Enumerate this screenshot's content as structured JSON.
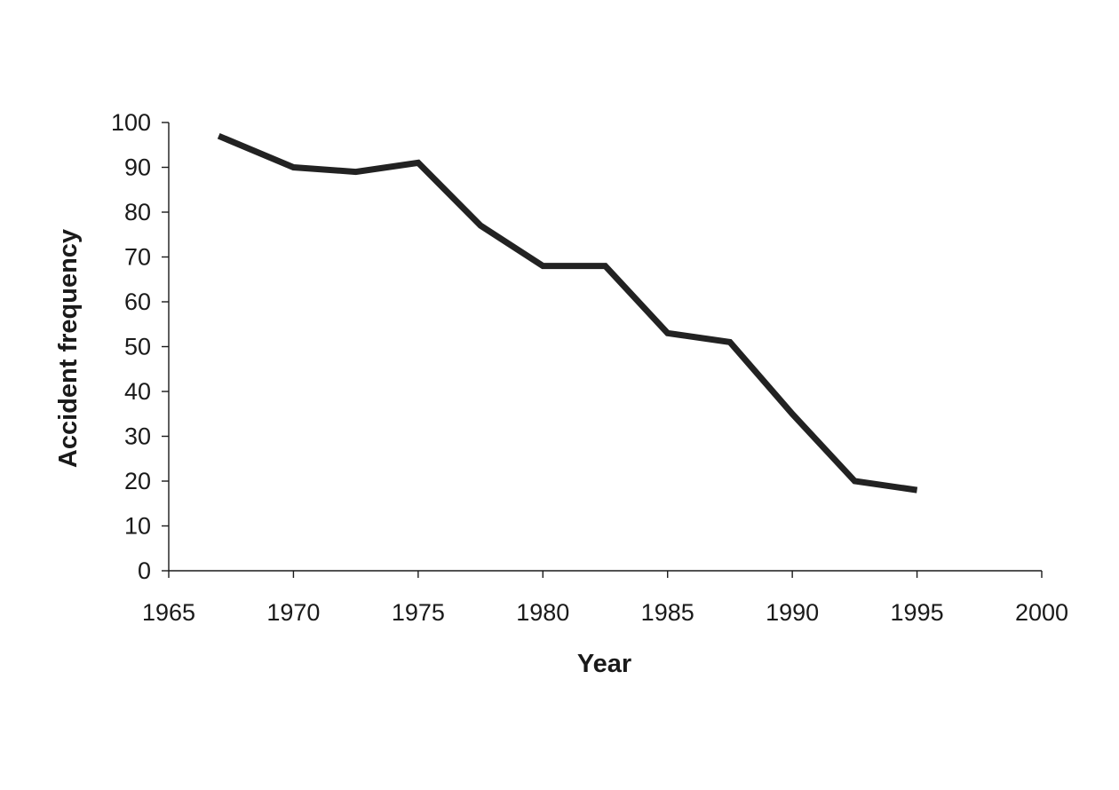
{
  "chart_data": {
    "type": "line",
    "title": "",
    "xlabel": "Year",
    "ylabel": "Accident frequency",
    "xlim": [
      1965,
      2000
    ],
    "ylim": [
      0,
      100
    ],
    "x_ticks": [
      1965,
      1970,
      1975,
      1980,
      1985,
      1990,
      1995,
      2000
    ],
    "y_ticks": [
      0,
      10,
      20,
      30,
      40,
      50,
      60,
      70,
      80,
      90,
      100
    ],
    "grid": false,
    "legend": "none",
    "series": [
      {
        "color": "#222222",
        "x": [
          1967,
          1970,
          1972.5,
          1975,
          1977.5,
          1980,
          1982.5,
          1985,
          1987.5,
          1990,
          1992.5,
          1995
        ],
        "y": [
          97,
          90,
          89,
          91,
          77,
          68,
          68,
          53,
          51,
          35,
          20,
          18
        ]
      }
    ]
  }
}
